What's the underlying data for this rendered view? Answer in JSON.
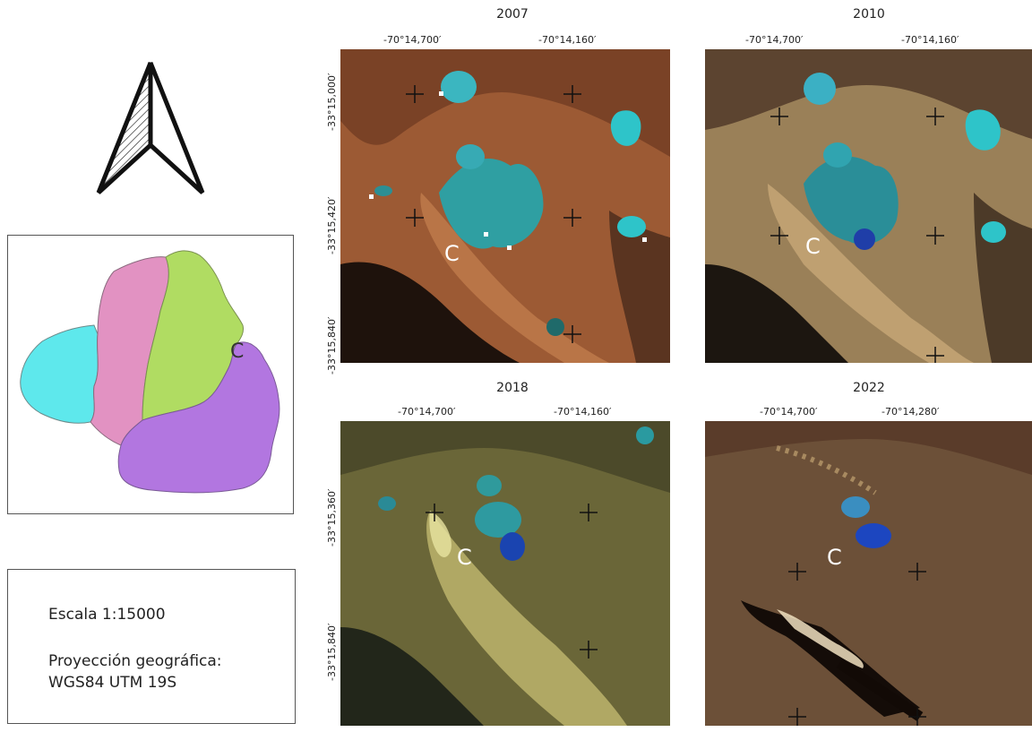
{
  "north_arrow": {
    "icon": "north-arrow-icon"
  },
  "inset_map": {
    "subbasin_colors": [
      "#5ee8ec",
      "#e292c2",
      "#b0dc62",
      "#b276e0"
    ],
    "point_label": "C"
  },
  "legend": {
    "scale": "Escala 1:15000",
    "projection_line1": "Proyección geográfica:",
    "projection_line2": "WGS84 UTM 19S"
  },
  "panels": [
    {
      "year": "2007",
      "lon_labels": [
        "-70°14,700′",
        "-70°14,160′"
      ],
      "lat_labels": [
        "-33°15,000′",
        "-33°15,420′",
        "-33°15,840′"
      ],
      "point_label": "C"
    },
    {
      "year": "2010",
      "lon_labels": [
        "-70°14,700′",
        "-70°14,160′"
      ],
      "lat_labels": [],
      "point_label": "C"
    },
    {
      "year": "2018",
      "lon_labels": [
        "-70°14,700′",
        "-70°14,160′"
      ],
      "lat_labels": [
        "-33°15,360′",
        "-33°15,840′"
      ],
      "point_label": "C"
    },
    {
      "year": "2022",
      "lon_labels": [
        "-70°14,700′",
        "-70°14,280′"
      ],
      "lat_labels": [],
      "point_label": "C"
    }
  ]
}
